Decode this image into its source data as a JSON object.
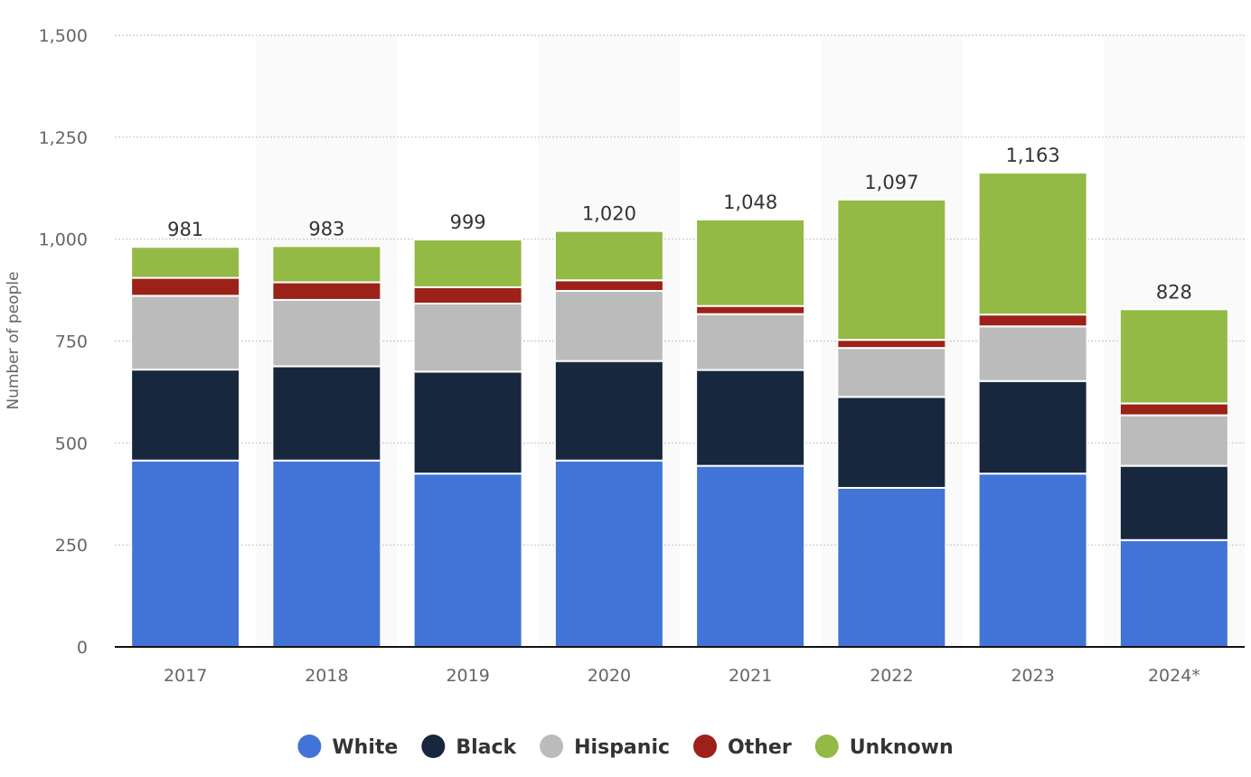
{
  "chart_data": {
    "type": "bar",
    "stacked": true,
    "categories": [
      "2017",
      "2018",
      "2019",
      "2020",
      "2021",
      "2022",
      "2023",
      "2024*"
    ],
    "series": [
      {
        "name": "White",
        "color": "#4274d8",
        "values": [
          457,
          457,
          425,
          457,
          444,
          390,
          425,
          262
        ]
      },
      {
        "name": "Black",
        "color": "#17273e",
        "values": [
          223,
          231,
          250,
          244,
          235,
          223,
          227,
          182
        ]
      },
      {
        "name": "Hispanic",
        "color": "#bbbbbb",
        "values": [
          181,
          163,
          167,
          172,
          137,
          120,
          134,
          124
        ]
      },
      {
        "name": "Other",
        "color": "#9c2119",
        "values": [
          44,
          43,
          40,
          26,
          20,
          20,
          29,
          29
        ]
      },
      {
        "name": "Unknown",
        "color": "#93ba44",
        "values": [
          76,
          89,
          117,
          121,
          212,
          344,
          348,
          231
        ]
      }
    ],
    "totals": [
      "981",
      "983",
      "999",
      "1,020",
      "1,048",
      "1,097",
      "1,163",
      "828"
    ],
    "ylabel": "Number of people",
    "ylim": [
      0,
      1500
    ],
    "yticks": [
      0,
      250,
      500,
      750,
      1000,
      1250,
      1500
    ],
    "ytick_labels": [
      "0",
      "250",
      "500",
      "750",
      "1,000",
      "1,250",
      "1,500"
    ],
    "grid": true,
    "legend_position": "bottom-center"
  }
}
